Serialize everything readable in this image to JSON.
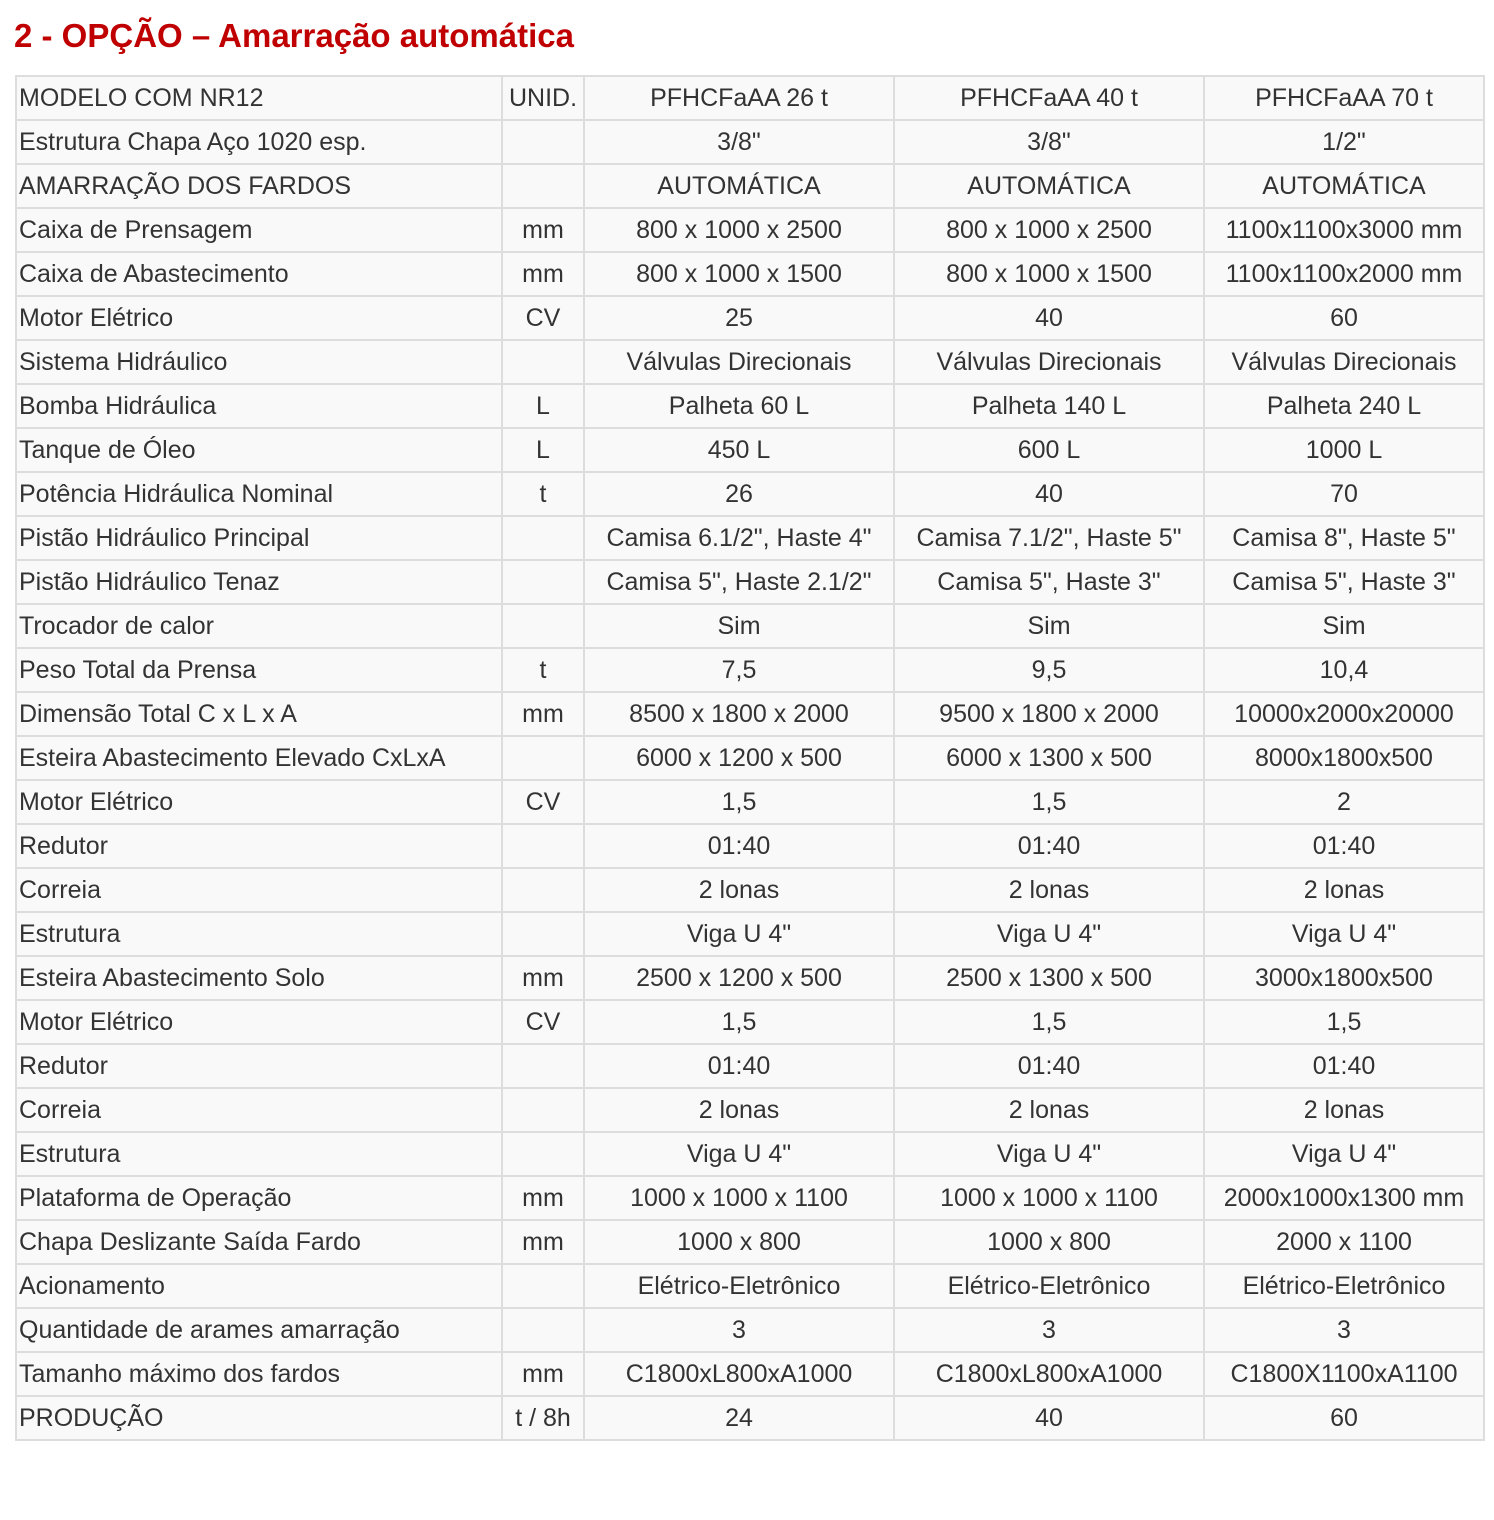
{
  "title": "2 - OPÇÃO – Amarração automática",
  "table": {
    "rows": [
      [
        "MODELO COM NR12",
        "UNID.",
        "PFHCFaAA 26 t",
        "PFHCFaAA 40 t",
        "PFHCFaAA 70 t"
      ],
      [
        "Estrutura Chapa Aço 1020 esp.",
        "",
        "3/8\"",
        "3/8\"",
        "1/2\""
      ],
      [
        "AMARRAÇÃO DOS FARDOS",
        "",
        "AUTOMÁTICA",
        "AUTOMÁTICA",
        "AUTOMÁTICA"
      ],
      [
        "Caixa de Prensagem",
        "mm",
        "800 x 1000 x 2500",
        "800 x 1000 x 2500",
        "1100x1100x3000 mm"
      ],
      [
        "Caixa de Abastecimento",
        "mm",
        "800 x 1000 x 1500",
        "800 x 1000 x 1500",
        "1100x1100x2000 mm"
      ],
      [
        "Motor Elétrico",
        "CV",
        "25",
        "40",
        "60"
      ],
      [
        "Sistema Hidráulico",
        "",
        "Válvulas Direcionais",
        "Válvulas Direcionais",
        "Válvulas Direcionais"
      ],
      [
        "Bomba Hidráulica",
        "L",
        "Palheta 60 L",
        "Palheta 140 L",
        "Palheta 240 L"
      ],
      [
        "Tanque de Óleo",
        "L",
        "450 L",
        "600 L",
        "1000 L"
      ],
      [
        "Potência Hidráulica Nominal",
        "t",
        "26",
        "40",
        "70"
      ],
      [
        "Pistão Hidráulico Principal",
        "",
        "Camisa 6.1/2\", Haste 4\"",
        "Camisa 7.1/2\", Haste 5\"",
        "Camisa 8\", Haste 5\""
      ],
      [
        "Pistão Hidráulico Tenaz",
        "",
        "Camisa 5\", Haste 2.1/2\"",
        "Camisa 5\", Haste 3\"",
        "Camisa 5\", Haste 3\""
      ],
      [
        "Trocador de calor",
        "",
        "Sim",
        "Sim",
        "Sim"
      ],
      [
        "Peso Total da Prensa",
        "t",
        "7,5",
        "9,5",
        "10,4"
      ],
      [
        "Dimensão Total C x L x A",
        "mm",
        "8500 x 1800 x 2000",
        "9500 x 1800 x 2000",
        "10000x2000x20000"
      ],
      [
        "Esteira Abastecimento Elevado CxLxA",
        "",
        "6000 x 1200 x 500",
        "6000 x 1300 x 500",
        "8000x1800x500"
      ],
      [
        "Motor Elétrico",
        "CV",
        "1,5",
        "1,5",
        "2"
      ],
      [
        "Redutor",
        "",
        "01:40",
        "01:40",
        "01:40"
      ],
      [
        "Correia",
        "",
        "2 lonas",
        "2 lonas",
        "2 lonas"
      ],
      [
        "Estrutura",
        "",
        "Viga U 4\"",
        "Viga U 4\"",
        "Viga U 4\""
      ],
      [
        "Esteira Abastecimento Solo",
        "mm",
        "2500 x 1200 x 500",
        "2500 x 1300 x 500",
        "3000x1800x500"
      ],
      [
        "Motor Elétrico",
        "CV",
        "1,5",
        "1,5",
        "1,5"
      ],
      [
        "Redutor",
        "",
        "01:40",
        "01:40",
        "01:40"
      ],
      [
        "Correia",
        "",
        "2 lonas",
        "2 lonas",
        "2 lonas"
      ],
      [
        "Estrutura",
        "",
        "Viga U 4\"",
        "Viga U 4\"",
        "Viga U 4\""
      ],
      [
        "Plataforma de Operação",
        "mm",
        "1000 x 1000 x 1100",
        "1000 x 1000 x 1100",
        "2000x1000x1300 mm"
      ],
      [
        "Chapa Deslizante Saída Fardo",
        "mm",
        "1000 x 800",
        "1000 x 800",
        "2000 x 1100"
      ],
      [
        "Acionamento",
        "",
        "Elétrico-Eletrônico",
        "Elétrico-Eletrônico",
        "Elétrico-Eletrônico"
      ],
      [
        "Quantidade de arames amarração",
        "",
        "3",
        "3",
        "3"
      ],
      [
        "Tamanho máximo dos fardos",
        "mm",
        "C1800xL800xA1000",
        "C1800xL800xA1000",
        "C1800X1100xA1100"
      ],
      [
        "PRODUÇÃO",
        "t / 8h",
        "24",
        "40",
        "60"
      ]
    ]
  },
  "colors": {
    "title": "#c00000",
    "text": "#333333",
    "border": "#dddddd",
    "background": "#f9f9f9"
  }
}
